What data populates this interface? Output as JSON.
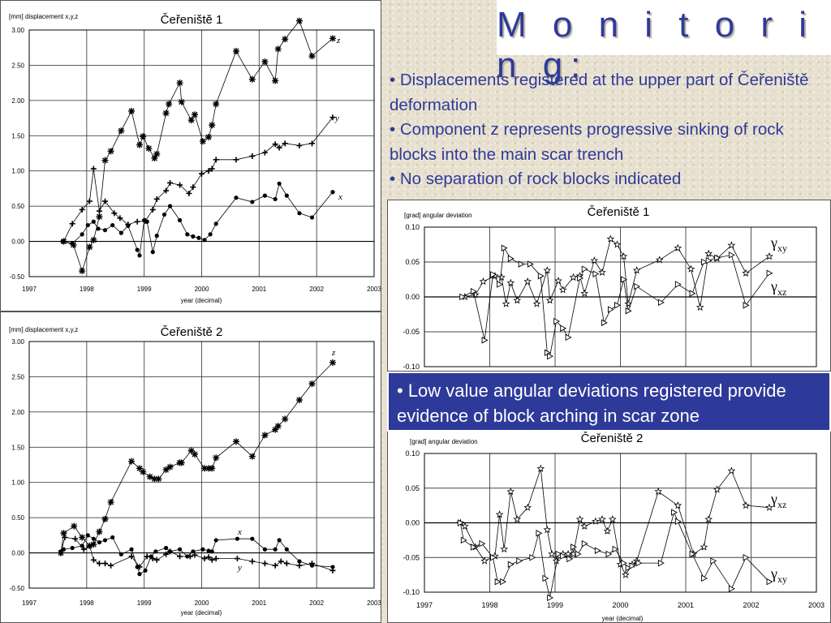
{
  "slide": {
    "title": "M o n i t o r i n g:",
    "bullets": [
      "• Displacements registered at the upper part of Čeřeniště deformation",
      "• Component  z  represents progressive sinking of rock blocks into the main scar trench",
      "• No separation of rock blocks indicated"
    ],
    "callout": "• Low value angular deviations registered provide evidence of block arching in scar zone"
  },
  "chart_data": [
    {
      "type": "line",
      "title": "Čeřeniště 1",
      "ylabel": "[mm] displacement x,y,z",
      "xlabel": "year (decimal)",
      "xlim": [
        1997,
        2003
      ],
      "ylim": [
        -0.5,
        3.0
      ],
      "xticks": [
        "1997",
        "1998",
        "1999",
        "2000",
        "2001",
        "2002",
        "2003"
      ],
      "yticks": [
        "3.00",
        "2.50",
        "2.00",
        "1.50",
        "1.00",
        "0.50",
        "0.00",
        "-0.50"
      ],
      "series": [
        {
          "name": "z",
          "marker": "asterisk",
          "x": [
            1997.6,
            1997.77,
            1997.92,
            1998.05,
            1998.12,
            1998.22,
            1998.32,
            1998.42,
            1998.6,
            1998.78,
            1998.92,
            1998.98,
            1999.08,
            1999.18,
            1999.22,
            1999.38,
            1999.43,
            1999.62,
            1999.65,
            1999.82,
            1999.88,
            2000.02,
            2000.12,
            2000.18,
            2000.25,
            2000.6,
            2000.88,
            2001.1,
            2001.28,
            2001.33,
            2001.45,
            2001.7,
            2001.92,
            2002.28
          ],
          "y": [
            0.0,
            -0.05,
            -0.42,
            -0.08,
            0.02,
            0.35,
            1.15,
            1.28,
            1.57,
            1.85,
            1.37,
            1.49,
            1.32,
            1.18,
            1.24,
            1.82,
            1.95,
            2.25,
            1.98,
            1.72,
            1.8,
            1.42,
            1.48,
            1.65,
            1.95,
            2.7,
            2.3,
            2.55,
            2.28,
            2.73,
            2.87,
            3.13,
            2.63,
            2.88
          ]
        },
        {
          "name": "y",
          "marker": "plus",
          "x": [
            1997.6,
            1997.75,
            1997.92,
            1998.05,
            1998.12,
            1998.22,
            1998.32,
            1998.48,
            1998.58,
            1998.72,
            1998.88,
            1999.02,
            1999.15,
            1999.22,
            1999.38,
            1999.45,
            1999.62,
            1999.78,
            1999.85,
            2000.0,
            2000.12,
            2000.18,
            2000.25,
            2000.6,
            2000.88,
            2001.1,
            2001.28,
            2001.35,
            2001.45,
            2001.7,
            2001.92,
            2002.28
          ],
          "y": [
            0.0,
            0.25,
            0.45,
            0.57,
            1.03,
            0.43,
            0.57,
            0.4,
            0.33,
            0.24,
            0.28,
            0.29,
            0.45,
            0.6,
            0.72,
            0.83,
            0.8,
            0.68,
            0.77,
            0.96,
            1.0,
            1.03,
            1.16,
            1.16,
            1.21,
            1.26,
            1.38,
            1.33,
            1.39,
            1.36,
            1.39,
            1.76
          ]
        },
        {
          "name": "x",
          "marker": "dot",
          "x": [
            1997.58,
            1997.75,
            1997.92,
            1998.02,
            1998.12,
            1998.2,
            1998.32,
            1998.45,
            1998.6,
            1998.72,
            1998.88,
            1998.92,
            1999.0,
            1999.05,
            1999.15,
            1999.22,
            1999.35,
            1999.45,
            1999.62,
            1999.75,
            1999.85,
            1999.95,
            2000.05,
            2000.15,
            2000.25,
            2000.6,
            2000.88,
            2001.1,
            2001.28,
            2001.35,
            2001.48,
            2001.7,
            2001.92,
            2002.28
          ],
          "y": [
            0.0,
            -0.03,
            0.1,
            0.23,
            0.28,
            0.18,
            0.16,
            0.23,
            0.12,
            0.22,
            -0.12,
            -0.2,
            0.3,
            0.28,
            -0.15,
            0.08,
            0.38,
            0.5,
            0.3,
            0.1,
            0.07,
            0.05,
            0.02,
            0.1,
            0.25,
            0.62,
            0.56,
            0.65,
            0.6,
            0.82,
            0.65,
            0.4,
            0.34,
            0.7
          ]
        }
      ]
    },
    {
      "type": "line",
      "title": "Čeřeniště 2",
      "ylabel": "[mm] displacement x,y,z",
      "xlabel": "year (decimal)",
      "xlim": [
        1997,
        2003
      ],
      "ylim": [
        -0.5,
        3.0
      ],
      "xticks": [
        "1997",
        "1998",
        "1999",
        "2000",
        "2001",
        "2002",
        "2003"
      ],
      "yticks": [
        "3.00",
        "2.50",
        "2.00",
        "1.50",
        "1.00",
        "0.50",
        "0.00",
        "-0.50"
      ],
      "series": [
        {
          "name": "z",
          "marker": "asterisk",
          "x": [
            1997.55,
            1997.6,
            1997.78,
            1997.92,
            1998.05,
            1998.12,
            1998.22,
            1998.32,
            1998.42,
            1998.78,
            1998.92,
            1998.98,
            1999.1,
            1999.18,
            1999.25,
            1999.38,
            1999.45,
            1999.62,
            1999.65,
            1999.82,
            1999.88,
            2000.05,
            2000.12,
            2000.18,
            2000.25,
            2000.6,
            2000.88,
            2001.1,
            2001.28,
            2001.33,
            2001.45,
            2001.7,
            2001.92,
            2002.28
          ],
          "y": [
            0.0,
            0.28,
            0.38,
            0.22,
            0.1,
            0.12,
            0.3,
            0.48,
            0.72,
            1.3,
            1.2,
            1.15,
            1.08,
            1.05,
            1.05,
            1.18,
            1.22,
            1.28,
            1.28,
            1.45,
            1.4,
            1.2,
            1.2,
            1.2,
            1.35,
            1.58,
            1.37,
            1.67,
            1.75,
            1.8,
            1.9,
            2.17,
            2.4,
            2.7
          ]
        },
        {
          "name": "y",
          "marker": "plus",
          "x": [
            1997.55,
            1997.62,
            1997.8,
            1997.95,
            1998.05,
            1998.12,
            1998.22,
            1998.32,
            1998.42,
            1998.78,
            1998.92,
            1999.05,
            1999.15,
            1999.22,
            1999.38,
            1999.45,
            1999.62,
            1999.8,
            1999.88,
            2000.05,
            2000.12,
            2000.18,
            2000.25,
            2000.62,
            2000.88,
            2001.1,
            2001.28,
            2001.38,
            2001.48,
            2001.7,
            2001.92,
            2002.28
          ],
          "y": [
            0.0,
            0.22,
            0.2,
            0.05,
            0.1,
            -0.1,
            -0.15,
            -0.15,
            -0.18,
            -0.05,
            -0.2,
            -0.05,
            -0.08,
            -0.1,
            -0.02,
            0.02,
            -0.05,
            -0.05,
            -0.03,
            -0.08,
            -0.06,
            -0.1,
            -0.08,
            -0.08,
            -0.12,
            -0.15,
            -0.18,
            -0.12,
            -0.15,
            -0.18,
            -0.15,
            -0.25
          ]
        },
        {
          "name": "x",
          "marker": "dot",
          "x": [
            1997.55,
            1997.6,
            1997.75,
            1997.92,
            1998.02,
            1998.12,
            1998.22,
            1998.32,
            1998.45,
            1998.6,
            1998.78,
            1998.88,
            1998.92,
            1999.02,
            1999.12,
            1999.2,
            1999.38,
            1999.45,
            1999.62,
            1999.75,
            1999.85,
            2000.02,
            2000.12,
            2000.18,
            2000.25,
            2000.62,
            2000.88,
            2001.1,
            2001.28,
            2001.35,
            2001.48,
            2001.7,
            2001.92,
            2002.28
          ],
          "y": [
            0.02,
            0.05,
            0.07,
            0.1,
            0.25,
            0.2,
            0.15,
            0.18,
            0.22,
            -0.02,
            0.05,
            -0.2,
            -0.3,
            -0.25,
            -0.05,
            0.02,
            0.07,
            0.02,
            0.05,
            -0.05,
            0.02,
            0.05,
            0.03,
            0.02,
            0.18,
            0.2,
            0.2,
            0.05,
            0.05,
            0.18,
            0.05,
            -0.12,
            -0.18,
            -0.2
          ]
        }
      ]
    },
    {
      "type": "line",
      "title": "Čeřeniště 1",
      "ylabel": "[grad]   angular deviation",
      "xlabel": "",
      "xlim": [
        1997,
        2003
      ],
      "ylim": [
        -0.1,
        0.1
      ],
      "xticks": [],
      "yticks": [
        "0.10",
        "0.05",
        "0.00",
        "-0.05",
        "-0.10"
      ],
      "series": [
        {
          "name": "γxy",
          "marker": "star",
          "x": [
            1997.62,
            1997.78,
            1997.9,
            1998.08,
            1998.18,
            1998.25,
            1998.32,
            1998.42,
            1998.58,
            1998.72,
            1998.88,
            1998.92,
            1999.05,
            1999.12,
            1999.28,
            1999.38,
            1999.45,
            1999.6,
            1999.72,
            1999.85,
            1999.95,
            2000.05,
            2000.12,
            2000.25,
            2000.6,
            2000.88,
            2001.08,
            2001.22,
            2001.35,
            2001.48,
            2001.7,
            2001.92,
            2002.28
          ],
          "y": [
            0.0,
            0.003,
            0.022,
            0.03,
            0.028,
            -0.01,
            0.02,
            -0.005,
            0.022,
            -0.01,
            0.038,
            -0.005,
            0.023,
            0.01,
            0.028,
            0.03,
            0.005,
            0.052,
            0.035,
            0.083,
            0.075,
            0.058,
            -0.01,
            0.038,
            0.053,
            0.07,
            0.04,
            -0.015,
            0.062,
            0.055,
            0.074,
            0.034,
            0.058
          ]
        },
        {
          "name": "γxz",
          "marker": "triangle",
          "x": [
            1997.58,
            1997.75,
            1997.92,
            1998.05,
            1998.15,
            1998.22,
            1998.32,
            1998.48,
            1998.62,
            1998.78,
            1998.88,
            1998.92,
            1999.02,
            1999.12,
            1999.2,
            1999.38,
            1999.45,
            1999.62,
            1999.75,
            1999.85,
            1999.95,
            2000.05,
            2000.12,
            2000.25,
            2000.62,
            2000.88,
            2001.1,
            2001.28,
            2001.35,
            2001.48,
            2001.7,
            2001.92,
            2002.28
          ],
          "y": [
            0.0,
            0.008,
            -0.062,
            0.032,
            0.018,
            0.07,
            0.055,
            0.047,
            0.047,
            0.03,
            -0.08,
            -0.085,
            -0.035,
            -0.045,
            -0.058,
            0.027,
            0.04,
            0.033,
            -0.037,
            -0.018,
            -0.012,
            0.025,
            -0.02,
            0.015,
            -0.008,
            0.018,
            0.005,
            0.05,
            0.052,
            0.056,
            0.06,
            -0.012,
            0.034
          ]
        }
      ]
    },
    {
      "type": "line",
      "title": "Čeřeniště 2",
      "ylabel": "[grad]   angular deviation",
      "xlabel": "year (decimal)",
      "xlim": [
        1997,
        2003
      ],
      "ylim": [
        -0.1,
        0.1
      ],
      "xticks": [
        "1997",
        "1998",
        "1999",
        "2000",
        "2001",
        "2002",
        "2003"
      ],
      "yticks": [
        "0.10",
        "0.05",
        "0.00",
        "-0.05",
        "-0.10"
      ],
      "series": [
        {
          "name": "γxz",
          "marker": "star",
          "x": [
            1997.55,
            1997.62,
            1997.78,
            1997.92,
            1998.08,
            1998.15,
            1998.22,
            1998.32,
            1998.42,
            1998.58,
            1998.78,
            1998.88,
            1998.95,
            1999.02,
            1999.12,
            1999.2,
            1999.28,
            1999.38,
            1999.45,
            1999.62,
            1999.72,
            1999.8,
            1999.88,
            2000.0,
            2000.08,
            2000.18,
            2000.25,
            2000.58,
            2000.88,
            2001.12,
            2001.28,
            2001.35,
            2001.48,
            2001.7,
            2001.92,
            2002.28
          ],
          "y": [
            0.0,
            -0.005,
            -0.035,
            -0.055,
            -0.048,
            0.012,
            -0.038,
            0.045,
            0.005,
            0.022,
            0.078,
            -0.01,
            -0.045,
            -0.055,
            -0.045,
            -0.045,
            -0.045,
            0.005,
            -0.005,
            0.002,
            0.005,
            -0.012,
            0.005,
            -0.06,
            -0.075,
            -0.06,
            -0.055,
            0.045,
            0.025,
            -0.045,
            -0.035,
            0.005,
            0.048,
            0.075,
            0.025,
            0.022
          ]
        },
        {
          "name": "γxy",
          "marker": "triangle",
          "x": [
            1997.55,
            1997.6,
            1997.75,
            1997.88,
            1998.05,
            1998.12,
            1998.2,
            1998.32,
            1998.45,
            1998.65,
            1998.75,
            1998.85,
            1998.92,
            1999.05,
            1999.12,
            1999.22,
            1999.28,
            1999.35,
            1999.45,
            1999.65,
            1999.82,
            1999.92,
            2000.05,
            2000.12,
            2000.18,
            2000.28,
            2000.62,
            2000.82,
            2000.88,
            2001.1,
            2001.28,
            2001.42,
            2001.7,
            2001.92,
            2002.28
          ],
          "y": [
            0.0,
            -0.025,
            -0.035,
            -0.03,
            -0.05,
            -0.085,
            -0.085,
            -0.06,
            -0.055,
            -0.05,
            -0.015,
            -0.08,
            -0.108,
            -0.045,
            -0.048,
            -0.052,
            -0.035,
            -0.045,
            -0.03,
            -0.04,
            -0.045,
            -0.038,
            -0.058,
            -0.065,
            -0.062,
            -0.058,
            -0.058,
            0.015,
            0.002,
            -0.045,
            -0.08,
            -0.055,
            -0.095,
            -0.05,
            -0.085
          ]
        }
      ]
    }
  ]
}
